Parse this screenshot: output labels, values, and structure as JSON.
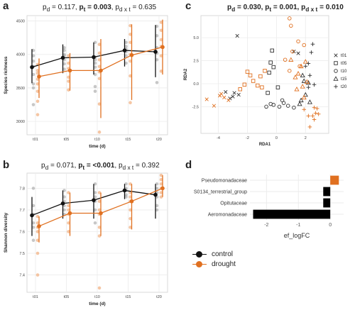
{
  "panels": {
    "a": {
      "letter": "a",
      "title": {
        "pd": "0.117",
        "pt": "0.003",
        "pdxt": "0.635"
      }
    },
    "b": {
      "letter": "b",
      "title": {
        "pd": "0.071",
        "pt": "<0.001",
        "pdxt": "0.392"
      }
    },
    "c": {
      "letter": "c",
      "title": {
        "pd": "0.030",
        "pt": "0.001",
        "pdxt": "0.010"
      }
    },
    "d": {
      "letter": "d"
    }
  },
  "title_labels": {
    "pd": "p",
    "sub_d": "d",
    "pt": "p",
    "sub_t": "t",
    "pdxt": "p",
    "sub_dxt": "d x t"
  },
  "colors": {
    "control": "#111111",
    "drought": "#e07020",
    "control_light": "#999999",
    "drought_light": "#f2b385",
    "grid": "#ebebeb"
  },
  "legend": {
    "control": "control",
    "drought": "drought"
  },
  "chart_data": [
    {
      "id": "a",
      "type": "line",
      "xlabel": "time (d)",
      "ylabel": "Species richness",
      "x": [
        "t01",
        "t05",
        "t10",
        "t15",
        "t20"
      ],
      "yticks": [
        3000,
        3500,
        4000,
        4500
      ],
      "ylim": [
        2800,
        4580
      ],
      "series": [
        {
          "name": "control",
          "mean": [
            3810,
            3950,
            3960,
            4060,
            4040
          ],
          "lower": [
            3570,
            3720,
            3700,
            3820,
            3660
          ],
          "upper": [
            4080,
            4150,
            4180,
            4230,
            4440
          ]
        },
        {
          "name": "drought",
          "mean": [
            3670,
            3760,
            3760,
            3990,
            4110
          ],
          "lower": [
            3350,
            3460,
            3050,
            3320,
            3700
          ],
          "upper": [
            3940,
            4020,
            4230,
            4450,
            4520
          ]
        }
      ],
      "points_control": [
        [
          0,
          3980
        ],
        [
          0,
          3900
        ],
        [
          0,
          3820
        ],
        [
          0,
          3700
        ],
        [
          0,
          3560
        ],
        [
          0,
          4060
        ],
        [
          0,
          3500
        ],
        [
          0,
          3250
        ],
        [
          1,
          4060
        ],
        [
          1,
          4000
        ],
        [
          1,
          3920
        ],
        [
          1,
          3860
        ],
        [
          1,
          3980
        ],
        [
          1,
          3780
        ],
        [
          1,
          4100
        ],
        [
          2,
          4180
        ],
        [
          2,
          3960
        ],
        [
          2,
          3920
        ],
        [
          2,
          3870
        ],
        [
          2,
          3810
        ],
        [
          2,
          3700
        ],
        [
          2,
          3520
        ],
        [
          2,
          3450
        ],
        [
          3,
          4180
        ],
        [
          3,
          4080
        ],
        [
          3,
          4040
        ],
        [
          3,
          3980
        ],
        [
          3,
          3870
        ],
        [
          3,
          4120
        ],
        [
          4,
          4020
        ],
        [
          4,
          3920
        ],
        [
          4,
          4100
        ],
        [
          4,
          3580
        ],
        [
          4,
          4280
        ],
        [
          4,
          4420
        ]
      ],
      "points_drought": [
        [
          0,
          3300
        ],
        [
          0,
          3450
        ],
        [
          0,
          3560
        ],
        [
          0,
          3630
        ],
        [
          0,
          3720
        ],
        [
          0,
          3850
        ],
        [
          0,
          3760
        ],
        [
          0,
          3100
        ],
        [
          1,
          3470
        ],
        [
          1,
          3600
        ],
        [
          1,
          3660
        ],
        [
          1,
          3790
        ],
        [
          1,
          3870
        ],
        [
          1,
          3980
        ],
        [
          2,
          3640
        ],
        [
          2,
          3740
        ],
        [
          2,
          3820
        ],
        [
          2,
          3920
        ],
        [
          2,
          4020
        ],
        [
          2,
          4150
        ],
        [
          2,
          3260
        ],
        [
          2,
          2840
        ],
        [
          3,
          3280
        ],
        [
          3,
          3680
        ],
        [
          3,
          3900
        ],
        [
          3,
          4000
        ],
        [
          3,
          4180
        ],
        [
          3,
          4300
        ],
        [
          3,
          4430
        ],
        [
          4,
          3750
        ],
        [
          4,
          3980
        ],
        [
          4,
          4120
        ],
        [
          4,
          4220
        ],
        [
          4,
          4360
        ],
        [
          4,
          4480
        ]
      ]
    },
    {
      "id": "b",
      "type": "line",
      "xlabel": "time (d)",
      "ylabel": "Shannon diversity",
      "x": [
        "t01",
        "t05",
        "t10",
        "t15",
        "t20"
      ],
      "yticks": [
        7.4,
        7.5,
        7.6,
        7.7,
        7.8
      ],
      "ylim": [
        7.32,
        7.87
      ],
      "series": [
        {
          "name": "control",
          "mean": [
            7.675,
            7.73,
            7.745,
            7.79,
            7.77
          ],
          "lower": [
            7.58,
            7.66,
            7.66,
            7.75,
            7.66
          ],
          "upper": [
            7.76,
            7.79,
            7.82,
            7.82,
            7.82
          ]
        },
        {
          "name": "drought",
          "mean": [
            7.625,
            7.685,
            7.685,
            7.74,
            7.8
          ],
          "lower": [
            7.55,
            7.58,
            7.58,
            7.61,
            7.76
          ],
          "upper": [
            7.67,
            7.78,
            7.78,
            7.82,
            7.86
          ]
        }
      ],
      "points_control": [
        [
          0,
          7.8
        ],
        [
          0,
          7.72
        ],
        [
          0,
          7.68
        ],
        [
          0,
          7.64
        ],
        [
          0,
          7.62
        ],
        [
          0,
          7.56
        ],
        [
          1,
          7.79
        ],
        [
          1,
          7.76
        ],
        [
          1,
          7.74
        ],
        [
          1,
          7.72
        ],
        [
          1,
          7.7
        ],
        [
          1,
          7.68
        ],
        [
          2,
          7.82
        ],
        [
          2,
          7.78
        ],
        [
          2,
          7.76
        ],
        [
          2,
          7.74
        ],
        [
          2,
          7.7
        ],
        [
          2,
          7.64
        ],
        [
          3,
          7.82
        ],
        [
          3,
          7.8
        ],
        [
          3,
          7.79
        ],
        [
          3,
          7.77
        ],
        [
          3,
          7.76
        ],
        [
          4,
          7.82
        ],
        [
          4,
          7.8
        ],
        [
          4,
          7.78
        ],
        [
          4,
          7.76
        ],
        [
          4,
          7.72
        ],
        [
          4,
          7.7
        ]
      ],
      "points_drought": [
        [
          0,
          7.67
        ],
        [
          0,
          7.64
        ],
        [
          0,
          7.62
        ],
        [
          0,
          7.6
        ],
        [
          0,
          7.56
        ],
        [
          0,
          7.5
        ],
        [
          0,
          7.4
        ],
        [
          1,
          7.78
        ],
        [
          1,
          7.72
        ],
        [
          1,
          7.7
        ],
        [
          1,
          7.68
        ],
        [
          1,
          7.64
        ],
        [
          1,
          7.6
        ],
        [
          2,
          7.78
        ],
        [
          2,
          7.74
        ],
        [
          2,
          7.7
        ],
        [
          2,
          7.68
        ],
        [
          2,
          7.62
        ],
        [
          2,
          7.58
        ],
        [
          2,
          7.34
        ],
        [
          3,
          7.82
        ],
        [
          3,
          7.78
        ],
        [
          3,
          7.76
        ],
        [
          3,
          7.74
        ],
        [
          3,
          7.7
        ],
        [
          3,
          7.66
        ],
        [
          3,
          7.62
        ],
        [
          4,
          7.86
        ],
        [
          4,
          7.84
        ],
        [
          4,
          7.82
        ],
        [
          4,
          7.8
        ],
        [
          4,
          7.78
        ],
        [
          4,
          7.76
        ]
      ]
    },
    {
      "id": "c",
      "type": "scatter",
      "xlabel": "RDA1",
      "ylabel": "RDA2",
      "xticks": [
        -4,
        -2,
        0,
        2
      ],
      "yticks": [
        -2.5,
        0.0,
        2.5,
        5.0
      ],
      "xlim": [
        -5.2,
        3.6
      ],
      "ylim": [
        -5.4,
        7.4
      ],
      "legend_entries": [
        {
          "label": "t01",
          "shape": "x"
        },
        {
          "label": "t05",
          "shape": "square"
        },
        {
          "label": "t10",
          "shape": "circle"
        },
        {
          "label": "t15",
          "shape": "triangle"
        },
        {
          "label": "t20",
          "shape": "plus"
        }
      ],
      "points": [
        {
          "t": 0,
          "g": "control",
          "pts": [
            [
              -2.7,
              5.2
            ],
            [
              -2.9,
              -1.0
            ],
            [
              -3.2,
              -1.6
            ],
            [
              -3.5,
              -0.9
            ],
            [
              -2.6,
              -1.2
            ],
            [
              -3.0,
              -1.4
            ],
            [
              1.2,
              3.5
            ],
            [
              1.5,
              3.3
            ]
          ]
        },
        {
          "t": 0,
          "g": "drought",
          "pts": [
            [
              -4.8,
              -1.7
            ],
            [
              -4.3,
              -2.4
            ],
            [
              -3.9,
              -1.3
            ],
            [
              -3.6,
              -1.5
            ],
            [
              -3.3,
              -1.8
            ],
            [
              -3.8,
              -1.1
            ]
          ]
        },
        {
          "t": 1,
          "g": "control",
          "pts": [
            [
              -0.3,
              3.6
            ],
            [
              -0.4,
              2.3
            ],
            [
              -0.2,
              1.8
            ],
            [
              -0.5,
              1.2
            ],
            [
              0.1,
              -0.4
            ],
            [
              -0.6,
              -1.0
            ]
          ]
        },
        {
          "t": 1,
          "g": "drought",
          "pts": [
            [
              -2.0,
              1.3
            ],
            [
              -1.8,
              0.9
            ],
            [
              -1.6,
              0.3
            ],
            [
              -2.2,
              -0.1
            ],
            [
              -1.3,
              -0.2
            ],
            [
              -1.0,
              -0.4
            ],
            [
              -2.5,
              -0.6
            ],
            [
              -0.8,
              1.4
            ],
            [
              -1.1,
              0.8
            ]
          ]
        },
        {
          "t": 2,
          "g": "control",
          "pts": [
            [
              -0.7,
              -2.5
            ],
            [
              -0.4,
              -2.2
            ],
            [
              -0.2,
              -2.3
            ],
            [
              0.2,
              -2.5
            ],
            [
              0.5,
              -2.1
            ],
            [
              0.8,
              -2.4
            ],
            [
              0.4,
              -1.8
            ],
            [
              1.2,
              -2.6
            ]
          ]
        },
        {
          "t": 2,
          "g": "drought",
          "pts": [
            [
              0.9,
              7.1
            ],
            [
              1.0,
              6.3
            ],
            [
              1.5,
              4.6
            ],
            [
              1.1,
              3.5
            ],
            [
              0.6,
              2.6
            ],
            [
              0.9,
              1.4
            ],
            [
              1.9,
              4.2
            ],
            [
              1.6,
              1.9
            ]
          ]
        },
        {
          "t": 3,
          "g": "control",
          "pts": [
            [
              1.8,
              0.9
            ],
            [
              1.9,
              0.3
            ],
            [
              2.2,
              0.1
            ],
            [
              2.0,
              -1.2
            ],
            [
              1.7,
              -1.8
            ],
            [
              2.3,
              -2.0
            ],
            [
              1.6,
              -2.2
            ]
          ]
        },
        {
          "t": 3,
          "g": "drought",
          "pts": [
            [
              1.0,
              2.6
            ],
            [
              2.0,
              2.4
            ],
            [
              1.7,
              1.9
            ],
            [
              1.5,
              1.1
            ],
            [
              1.3,
              0.7
            ],
            [
              2.1,
              0.2
            ],
            [
              1.8,
              -0.3
            ],
            [
              1.4,
              -0.6
            ],
            [
              1.9,
              -1.5
            ]
          ]
        },
        {
          "t": 4,
          "g": "control",
          "pts": [
            [
              2.5,
              4.3
            ],
            [
              2.4,
              3.4
            ],
            [
              2.2,
              2.2
            ],
            [
              2.0,
              1.9
            ],
            [
              2.3,
              0.9
            ],
            [
              2.6,
              -0.1
            ],
            [
              2.2,
              -0.4
            ]
          ]
        },
        {
          "t": 4,
          "g": "drought",
          "pts": [
            [
              2.6,
              -2.6
            ],
            [
              2.8,
              -2.7
            ],
            [
              2.7,
              -3.2
            ],
            [
              2.5,
              -3.5
            ],
            [
              2.9,
              -3.3
            ],
            [
              2.6,
              -3.9
            ],
            [
              2.2,
              -3.5
            ],
            [
              2.3,
              -4.7
            ],
            [
              1.9,
              -2.8
            ]
          ]
        }
      ]
    },
    {
      "id": "d",
      "type": "bar",
      "xlabel": "ef_logFC",
      "categories": [
        "Pseudomonadaceae",
        "S0134_terrestrial_group",
        "Opitutaceae",
        "Aeromonadaceae"
      ],
      "values": [
        0.27,
        -0.22,
        -0.22,
        -2.42
      ],
      "xticks": [
        -2,
        -1,
        0
      ],
      "xlim": [
        -2.52,
        0.42
      ]
    }
  ]
}
